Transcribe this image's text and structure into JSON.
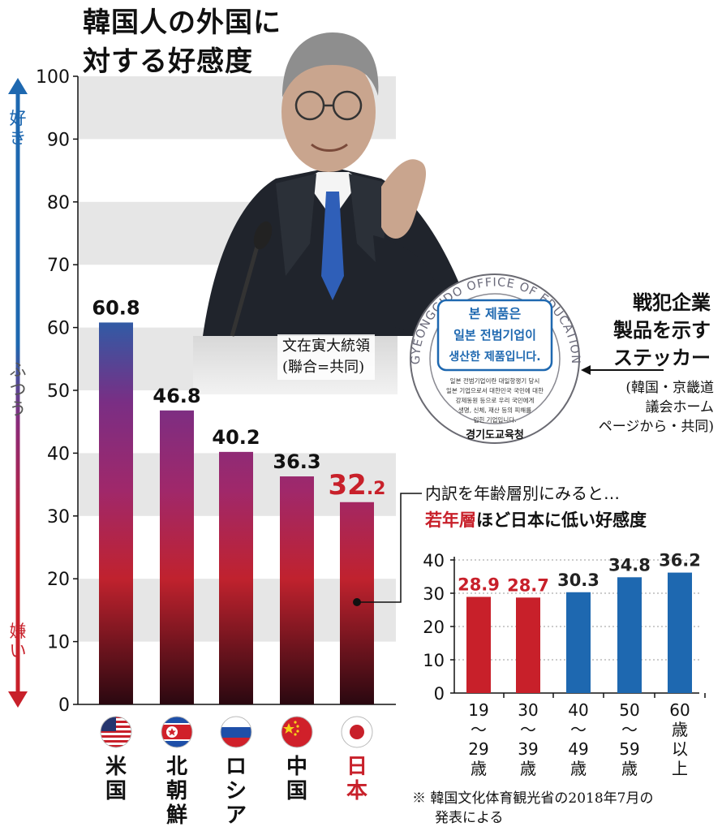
{
  "title": {
    "line1": "韓国人の外国に",
    "line2": "対する好感度"
  },
  "side_labels": {
    "like": "好き",
    "neutral": "ふつう",
    "dislike": "嫌い"
  },
  "photo": {
    "caption_line1": "文在寅大統領",
    "caption_line2": "(聯合=共同)"
  },
  "sticker": {
    "ring_text": "GYEONGGIDO OFFICE OF EDUCATION",
    "main_line1": "본 제품은",
    "main_line2": "일본 전범기업이",
    "main_line3": "생산한 제품입니다.",
    "small_line1": "일본 전범기업이란 대일항쟁기 당시",
    "small_line2": "일본 기업으로서 대한민국 국민에 대한",
    "small_line3": "강제동원 등으로 우리 국민에게",
    "small_line4": "생명, 신체, 재산 등의 피해를",
    "small_line5": "입힌 기업입니다.",
    "bottom": "경기도교육청"
  },
  "sticker_label": {
    "line1": "戦犯企業",
    "line2": "製品を示す",
    "line3": "ステッカー",
    "sub1": "(韓国・京畿道",
    "sub2": "議会ホーム",
    "sub3": "ページから・共同)"
  },
  "breakdown": {
    "intro": "内訳を年齢層別にみると…",
    "highlight": "若年層",
    "rest": "ほど日本に低い好感度"
  },
  "source": {
    "line1": "※ 韓国文化体育観光省の2018年7月の",
    "line2": "発表による"
  },
  "colors": {
    "red": "#c8202a",
    "blue": "#1e68b0",
    "purple": "#8a2a7a",
    "dark_red": "#3a0a12"
  },
  "chart_data": [
    {
      "type": "bar",
      "categories": [
        "米国",
        "北朝鮮",
        "ロシア",
        "中国",
        "日本"
      ],
      "category_lines": [
        [
          "米",
          "国"
        ],
        [
          "北",
          "朝",
          "鮮"
        ],
        [
          "ロ",
          "シ",
          "ア"
        ],
        [
          "中",
          "国"
        ],
        [
          "日",
          "本"
        ]
      ],
      "flags": [
        "us-flag-icon",
        "north-korea-flag-icon",
        "russia-flag-icon",
        "china-flag-icon",
        "japan-flag-icon"
      ],
      "values": [
        60.8,
        46.8,
        40.2,
        36.3,
        32.2
      ],
      "value_labels": [
        "60.8",
        "46.8",
        "40.2",
        "36.3",
        "32.2"
      ],
      "highlight": "日本",
      "ylim": [
        0,
        100
      ],
      "yticks": [
        0,
        10,
        20,
        30,
        40,
        50,
        60,
        70,
        80,
        90,
        100
      ],
      "grid": "alternating horizontal bands"
    },
    {
      "type": "bar",
      "categories": [
        "19〜29歳",
        "30〜39歳",
        "40〜49歳",
        "50〜59歳",
        "60歳以上"
      ],
      "category_lines": [
        [
          "19",
          "〜",
          "29",
          "歳"
        ],
        [
          "30",
          "〜",
          "39",
          "歳"
        ],
        [
          "40",
          "〜",
          "49",
          "歳"
        ],
        [
          "50",
          "〜",
          "59",
          "歳"
        ],
        [
          "60",
          "歳",
          "以",
          "上"
        ]
      ],
      "values": [
        28.9,
        28.7,
        30.3,
        34.8,
        36.2
      ],
      "value_labels": [
        "28.9",
        "28.7",
        "30.3",
        "34.8",
        "36.2"
      ],
      "bar_colors": [
        "#c8202a",
        "#c8202a",
        "#1e68b0",
        "#1e68b0",
        "#1e68b0"
      ],
      "ylim": [
        0,
        40
      ],
      "yticks": [
        0,
        10,
        20,
        30,
        40
      ],
      "grid": "dotted horizontal lines"
    }
  ]
}
